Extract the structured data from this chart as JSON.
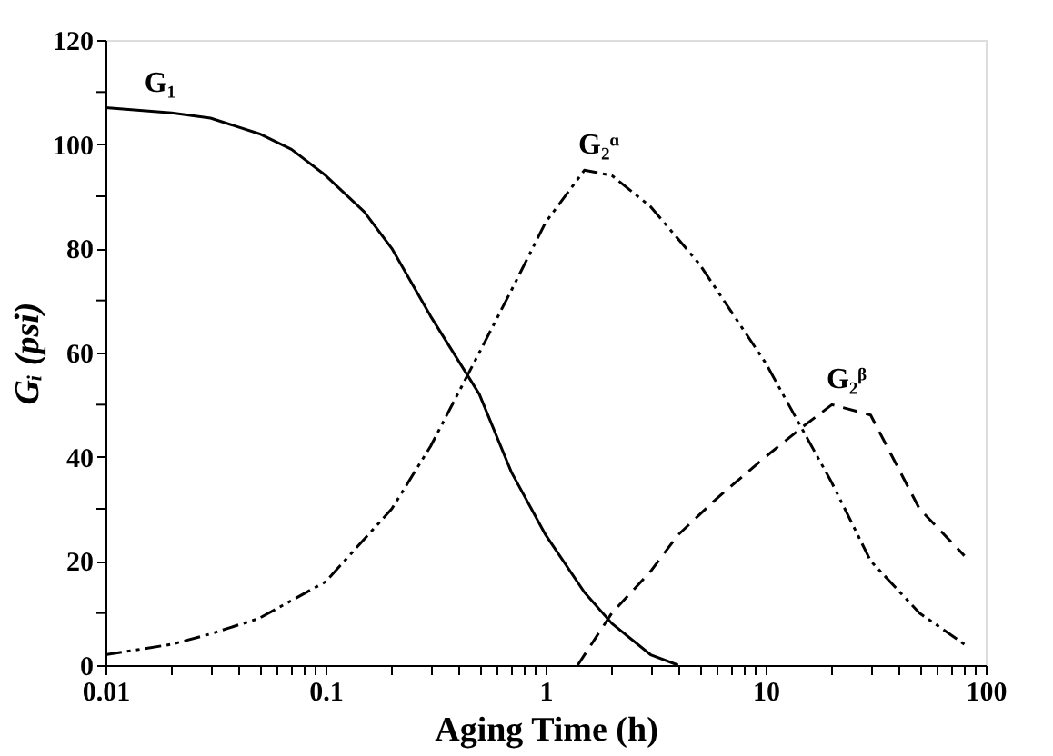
{
  "chart_data": {
    "type": "line",
    "xlabel": "Aging Time (h)",
    "ylabel": "Gᵢ (psi)",
    "log": "x",
    "xlim": [
      0.01,
      100
    ],
    "ylim": [
      0,
      120
    ],
    "xticks": [
      0.01,
      {
        "value": 0.02,
        "label": null
      },
      {
        "value": 0.03,
        "label": null
      },
      {
        "value": 0.04,
        "label": null
      },
      {
        "value": 0.05,
        "label": null
      },
      {
        "value": 0.06,
        "label": null
      },
      {
        "value": 0.07,
        "label": null
      },
      {
        "value": 0.08,
        "label": null
      },
      {
        "value": 0.09,
        "label": null
      },
      0.1,
      {
        "value": 0.2,
        "label": null
      },
      {
        "value": 0.3,
        "label": null
      },
      {
        "value": 0.4,
        "label": null
      },
      {
        "value": 0.5,
        "label": null
      },
      {
        "value": 0.6,
        "label": null
      },
      {
        "value": 0.7,
        "label": null
      },
      {
        "value": 0.8,
        "label": null
      },
      {
        "value": 0.9,
        "label": null
      },
      1,
      {
        "value": 2,
        "label": null
      },
      {
        "value": 3,
        "label": null
      },
      {
        "value": 4,
        "label": null
      },
      {
        "value": 5,
        "label": null
      },
      {
        "value": 6,
        "label": null
      },
      {
        "value": 7,
        "label": null
      },
      {
        "value": 8,
        "label": null
      },
      {
        "value": 9,
        "label": null
      },
      10,
      {
        "value": 20,
        "label": null
      },
      {
        "value": 30,
        "label": null
      },
      {
        "value": 40,
        "label": null
      },
      {
        "value": 50,
        "label": null
      },
      {
        "value": 60,
        "label": null
      },
      {
        "value": 70,
        "label": null
      },
      {
        "value": 80,
        "label": null
      },
      {
        "value": 90,
        "label": null
      },
      100
    ],
    "yticks": [
      0,
      {
        "value": 10,
        "label": null
      },
      20,
      {
        "value": 30,
        "label": null
      },
      40,
      {
        "value": 50,
        "label": null
      },
      60,
      {
        "value": 70,
        "label": null
      },
      80,
      {
        "value": 90,
        "label": null
      },
      100,
      {
        "value": 110,
        "label": null
      },
      120
    ],
    "grid": false,
    "marker": "none",
    "series": [
      {
        "name": "G₁",
        "color": "#000000",
        "line_style": "solid",
        "x": [
          0.01,
          0.02,
          0.03,
          0.05,
          0.07,
          0.1,
          0.15,
          0.2,
          0.3,
          0.5,
          0.7,
          1,
          1.5,
          2,
          3,
          4
        ],
        "values": [
          107,
          106,
          105,
          102,
          99,
          94,
          87,
          80,
          67,
          52,
          37,
          25,
          14,
          8,
          2,
          0
        ]
      },
      {
        "name": "G₂ᵅ",
        "color": "#000000",
        "line_style": "dashdot",
        "x": [
          0.01,
          0.02,
          0.03,
          0.05,
          0.1,
          0.2,
          0.3,
          0.5,
          0.7,
          1,
          1.5,
          2,
          3,
          5,
          10,
          20,
          30,
          50,
          80
        ],
        "values": [
          2,
          4,
          6,
          9,
          16,
          30,
          42,
          60,
          72,
          85,
          95,
          94,
          88,
          77,
          58,
          35,
          20,
          10,
          4
        ]
      },
      {
        "name": "G₂ᵝ",
        "color": "#000000",
        "line_style": "dashed",
        "x": [
          1.4,
          2,
          3,
          4,
          6,
          10,
          15,
          20,
          30,
          50,
          80
        ],
        "values": [
          0,
          10,
          18,
          25,
          32,
          40,
          46,
          50,
          48,
          30,
          21
        ]
      }
    ]
  }
}
